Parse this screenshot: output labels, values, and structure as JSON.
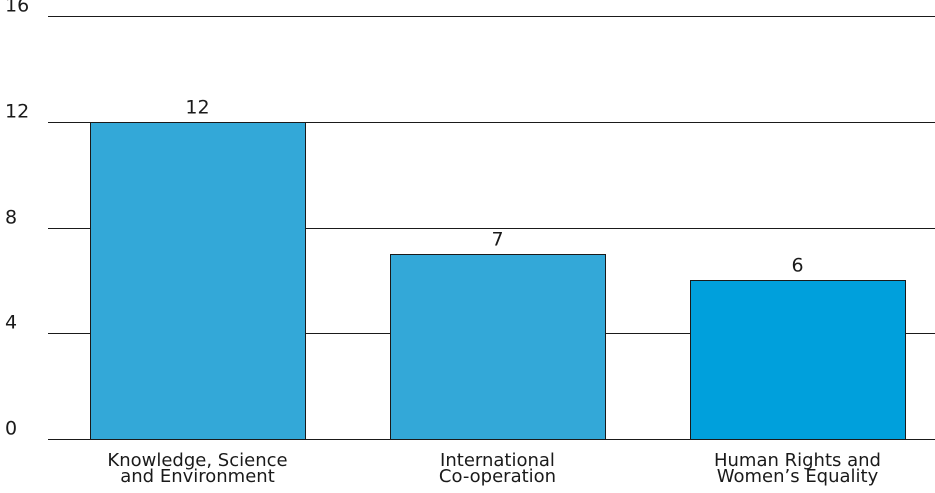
{
  "chart_data": {
    "type": "bar",
    "categories": [
      [
        "Knowledge, Science",
        "and Environment"
      ],
      [
        "International",
        "Co-operation"
      ],
      [
        "Human Rights and",
        "Women’s Equality"
      ]
    ],
    "values": [
      12,
      7,
      6
    ],
    "data_labels": [
      "12",
      "7",
      "6"
    ],
    "ylim": [
      0,
      16
    ],
    "yticks": [
      0,
      4,
      8,
      12,
      16
    ],
    "grid": true,
    "legend": "none",
    "bar_colors": [
      "#33a8d8",
      "#33a8d8",
      "#00a0dc"
    ],
    "bar_outline": "#1a1a1a",
    "grid_color": "#1a1a1a"
  }
}
